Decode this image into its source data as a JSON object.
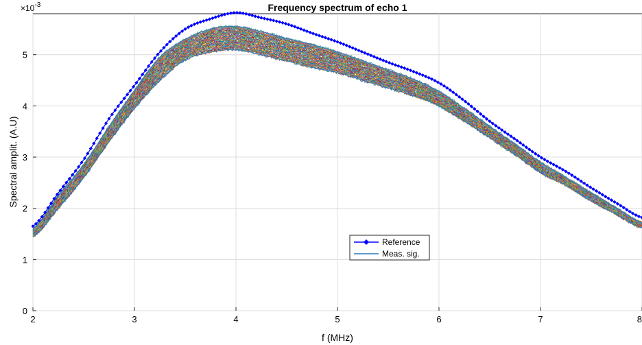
{
  "chart_data": {
    "type": "line",
    "title": "Frequency spectrum of echo 1",
    "xlabel": "f (MHz)",
    "ylabel": "Spectral amplit. (A.U)",
    "y_exponent_label": "×10",
    "y_exponent_power": "-3",
    "xlim": [
      2,
      8
    ],
    "ylim": [
      0,
      5.8
    ],
    "xticks": [
      "2",
      "3",
      "4",
      "5",
      "6",
      "7",
      "8"
    ],
    "yticks": [
      "0",
      "1",
      "2",
      "3",
      "4",
      "5"
    ],
    "grid": true,
    "legend_position": "lower-center",
    "series": [
      {
        "name": "Reference",
        "color": "#0000ff",
        "marker": "diamond",
        "x": [
          2.0,
          2.25,
          2.5,
          2.75,
          3.0,
          3.25,
          3.5,
          3.75,
          4.0,
          4.25,
          4.5,
          4.75,
          5.0,
          5.25,
          5.5,
          5.75,
          6.0,
          6.25,
          6.5,
          6.75,
          7.0,
          7.25,
          7.5,
          7.75,
          8.0
        ],
        "values": [
          1.65,
          2.3,
          2.95,
          3.75,
          4.4,
          5.05,
          5.5,
          5.7,
          5.82,
          5.72,
          5.6,
          5.42,
          5.25,
          5.05,
          4.85,
          4.67,
          4.45,
          4.1,
          3.7,
          3.35,
          3.0,
          2.72,
          2.4,
          2.1,
          1.82
        ]
      },
      {
        "name": "Meas. sig.",
        "color": "#2f7ab9",
        "x": [
          2.0,
          2.25,
          2.5,
          2.75,
          3.0,
          3.25,
          3.5,
          3.75,
          4.0,
          4.25,
          4.5,
          4.75,
          5.0,
          5.25,
          5.5,
          5.75,
          6.0,
          6.25,
          6.5,
          6.75,
          7.0,
          7.25,
          7.5,
          7.75,
          8.0
        ],
        "values_low": [
          1.45,
          2.0,
          2.6,
          3.3,
          3.95,
          4.5,
          4.9,
          5.05,
          5.1,
          5.0,
          4.88,
          4.75,
          4.65,
          4.5,
          4.35,
          4.2,
          4.0,
          3.7,
          3.38,
          3.05,
          2.7,
          2.45,
          2.15,
          1.88,
          1.62
        ],
        "values_high": [
          1.6,
          2.25,
          2.85,
          3.6,
          4.3,
          4.95,
          5.3,
          5.5,
          5.55,
          5.45,
          5.32,
          5.2,
          5.05,
          4.88,
          4.7,
          4.52,
          4.28,
          3.95,
          3.6,
          3.25,
          2.9,
          2.6,
          2.3,
          2.0,
          1.72
        ]
      }
    ]
  }
}
